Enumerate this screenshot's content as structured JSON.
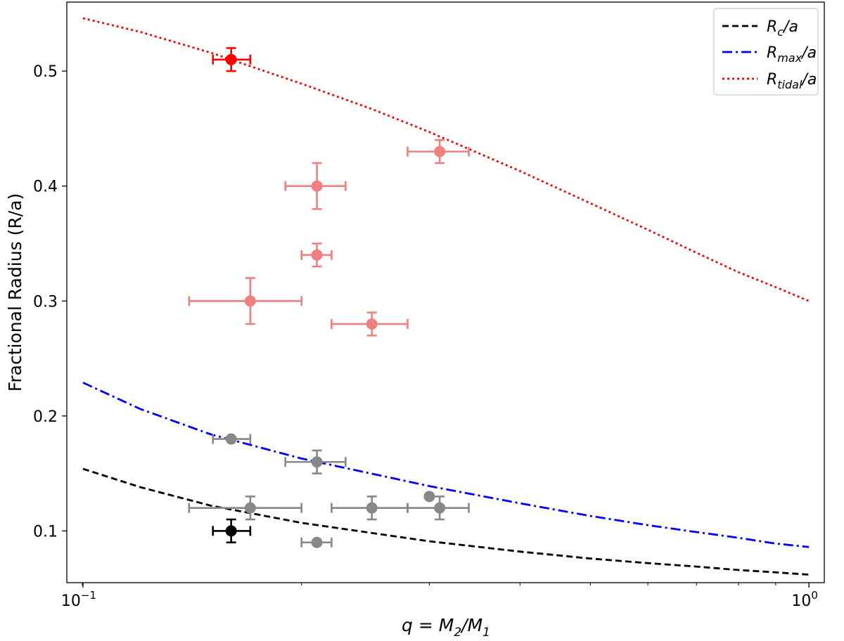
{
  "chart_data": {
    "type": "scatter",
    "title": "",
    "xlabel_parts": [
      "q = M",
      "2",
      "/M",
      "1"
    ],
    "ylabel": "Fractional Radius (R/a)",
    "xscale": "log",
    "xlim": [
      0.095,
      1.05
    ],
    "ylim": [
      0.055,
      0.56
    ],
    "x_ticks": [
      {
        "value": 0.1,
        "base": "10",
        "exp": "−1"
      },
      {
        "value": 1.0,
        "base": "10",
        "exp": "0"
      }
    ],
    "y_ticks": [
      {
        "value": 0.1,
        "label": "0.1"
      },
      {
        "value": 0.2,
        "label": "0.2"
      },
      {
        "value": 0.3,
        "label": "0.3"
      },
      {
        "value": 0.4,
        "label": "0.4"
      },
      {
        "value": 0.5,
        "label": "0.5"
      }
    ],
    "legend_position": "top-right",
    "lines": [
      {
        "name": "Rc/a",
        "legend_main": "R",
        "legend_sub": "c",
        "legend_tail": "/a",
        "style": "dashed",
        "color": "#000000",
        "x": [
          0.1,
          0.12,
          0.15,
          0.2,
          0.3,
          0.4,
          0.5,
          0.6,
          0.7,
          0.8,
          0.9,
          1.0
        ],
        "y": [
          0.154,
          0.138,
          0.122,
          0.107,
          0.091,
          0.082,
          0.076,
          0.072,
          0.069,
          0.066,
          0.064,
          0.062
        ]
      },
      {
        "name": "Rmax/a",
        "legend_main": "R",
        "legend_sub": "max",
        "legend_tail": "/a",
        "style": "dashdot",
        "color": "#0000ff",
        "x": [
          0.1,
          0.12,
          0.15,
          0.2,
          0.3,
          0.4,
          0.5,
          0.6,
          0.7,
          0.8,
          0.9,
          1.0
        ],
        "y": [
          0.229,
          0.206,
          0.184,
          0.163,
          0.139,
          0.124,
          0.113,
          0.105,
          0.099,
          0.094,
          0.089,
          0.086
        ]
      },
      {
        "name": "Rtidal/a",
        "legend_main": "R",
        "legend_sub": "tidal",
        "legend_tail": "/a",
        "style": "dotted",
        "color": "#ff0000",
        "x": [
          0.1,
          0.12,
          0.15,
          0.2,
          0.25,
          0.3,
          0.4,
          0.5,
          0.6,
          0.7,
          0.8,
          0.9,
          1.0
        ],
        "y": [
          0.546,
          0.534,
          0.516,
          0.489,
          0.467,
          0.447,
          0.413,
          0.385,
          0.362,
          0.342,
          0.325,
          0.312,
          0.3
        ]
      }
    ],
    "points": [
      {
        "group": "red",
        "color": "#ff0000",
        "x": 0.16,
        "y": 0.51,
        "xerr": [
          0.151,
          0.17
        ],
        "yerr": [
          0.5,
          0.52
        ]
      },
      {
        "group": "light-red",
        "color": "#f08080",
        "x": 0.31,
        "y": 0.43,
        "xerr": [
          0.28,
          0.34
        ],
        "yerr": [
          0.42,
          0.44
        ]
      },
      {
        "group": "light-red",
        "color": "#f08080",
        "x": 0.21,
        "y": 0.4,
        "xerr": [
          0.19,
          0.23
        ],
        "yerr": [
          0.38,
          0.42
        ]
      },
      {
        "group": "light-red",
        "color": "#f08080",
        "x": 0.21,
        "y": 0.34,
        "xerr": [
          0.2,
          0.22
        ],
        "yerr": [
          0.33,
          0.35
        ]
      },
      {
        "group": "light-red",
        "color": "#f08080",
        "x": 0.17,
        "y": 0.3,
        "xerr": [
          0.14,
          0.2
        ],
        "yerr": [
          0.28,
          0.32
        ]
      },
      {
        "group": "light-red",
        "color": "#f08080",
        "x": 0.25,
        "y": 0.28,
        "xerr": [
          0.22,
          0.28
        ],
        "yerr": [
          0.27,
          0.29
        ]
      },
      {
        "group": "gray",
        "color": "#888888",
        "x": 0.16,
        "y": 0.18,
        "xerr": [
          0.151,
          0.17
        ],
        "yerr": null
      },
      {
        "group": "gray",
        "color": "#888888",
        "x": 0.21,
        "y": 0.16,
        "xerr": [
          0.19,
          0.23
        ],
        "yerr": [
          0.15,
          0.17
        ]
      },
      {
        "group": "gray",
        "color": "#888888",
        "x": 0.17,
        "y": 0.12,
        "xerr": [
          0.14,
          0.2
        ],
        "yerr": [
          0.11,
          0.13
        ]
      },
      {
        "group": "gray",
        "color": "#888888",
        "x": 0.25,
        "y": 0.12,
        "xerr": [
          0.22,
          0.28
        ],
        "yerr": [
          0.11,
          0.13
        ]
      },
      {
        "group": "gray",
        "color": "#888888",
        "x": 0.31,
        "y": 0.12,
        "xerr": [
          0.28,
          0.34
        ],
        "yerr": [
          0.11,
          0.13
        ]
      },
      {
        "group": "gray",
        "color": "#888888",
        "x": 0.3,
        "y": 0.13,
        "xerr": null,
        "yerr": null
      },
      {
        "group": "gray",
        "color": "#888888",
        "x": 0.21,
        "y": 0.09,
        "xerr": [
          0.2,
          0.22
        ],
        "yerr": null
      },
      {
        "group": "black",
        "color": "#000000",
        "x": 0.16,
        "y": 0.1,
        "xerr": [
          0.151,
          0.17
        ],
        "yerr": [
          0.09,
          0.11
        ]
      }
    ]
  }
}
